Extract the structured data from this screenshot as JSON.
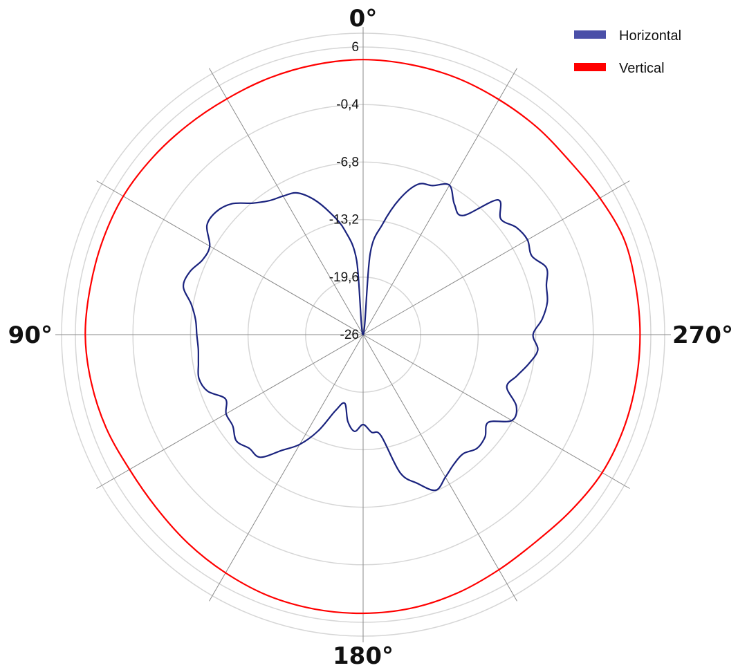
{
  "chart_data": {
    "type": "polar-line",
    "angle_labels": [
      "0°",
      "90°",
      "180°",
      "270°"
    ],
    "radial_ticks": [
      "-26",
      "-19,6",
      "-13,2",
      "-6,8",
      "-0,4",
      "6"
    ],
    "rlim": [
      -26,
      6
    ],
    "angle_direction": "counterclockwise",
    "zero_angle": "top",
    "spoke_step_deg": 30,
    "grid": true,
    "legend_position": "top-right",
    "series": [
      {
        "name": "Horizontal",
        "color": "#1a237e",
        "legend_color": "#4a4fa8",
        "theta": [
          0,
          5,
          10,
          15,
          20,
          25,
          30,
          35,
          40,
          45,
          50,
          55,
          60,
          65,
          70,
          75,
          80,
          85,
          90,
          95,
          100,
          105,
          110,
          115,
          120,
          125,
          130,
          135,
          140,
          145,
          150,
          155,
          160,
          165,
          170,
          175,
          180,
          185,
          190,
          195,
          200,
          205,
          210,
          215,
          220,
          225,
          230,
          235,
          240,
          245,
          250,
          255,
          260,
          265,
          270,
          275,
          280,
          285,
          290,
          295,
          300,
          305,
          310,
          315,
          320,
          325,
          330,
          335,
          340,
          345,
          350,
          355,
          360
        ],
        "r": [
          -26,
          -17.7,
          -14.2,
          -12.0,
          -10.0,
          -8.6,
          -8.2,
          -7.8,
          -6.9,
          -5.4,
          -4.7,
          -4.8,
          -6.3,
          -6.3,
          -5.5,
          -5.3,
          -6.6,
          -7.3,
          -7.5,
          -7.6,
          -7.4,
          -7.1,
          -7.6,
          -9.1,
          -8.4,
          -8.3,
          -7.6,
          -8.1,
          -8.2,
          -10.3,
          -11.9,
          -14.2,
          -17.0,
          -18.1,
          -16.2,
          -15.2,
          -16.0,
          -15.1,
          -14.6,
          -10.1,
          -8.4,
          -6.9,
          -7.7,
          -8.4,
          -8.7,
          -8.1,
          -8.3,
          -9.0,
          -6.9,
          -7.2,
          -9.0,
          -8.3,
          -7.3,
          -6.5,
          -7.1,
          -6.0,
          -5.2,
          -4.9,
          -4.3,
          -5.3,
          -4.9,
          -5.2,
          -6.0,
          -4.8,
          -8.7,
          -8.3,
          -6.8,
          -7.7,
          -8.2,
          -10.4,
          -13.5,
          -16.9,
          -26
        ]
      },
      {
        "name": "Vertical",
        "color": "#ff0000",
        "legend_color": "#ff0000",
        "theta": [
          0,
          10,
          20,
          30,
          40,
          50,
          60,
          70,
          80,
          90,
          100,
          110,
          120,
          130,
          140,
          150,
          160,
          170,
          180,
          190,
          200,
          210,
          220,
          230,
          240,
          250,
          260,
          270,
          280,
          290,
          300,
          310,
          320,
          330,
          340,
          350,
          360
        ],
        "r": [
          4.6,
          4.5,
          4.4,
          4.3,
          4.4,
          4.6,
          4.8,
          4.8,
          4.8,
          4.9,
          4.7,
          4.4,
          4.0,
          4.0,
          4.3,
          4.6,
          4.9,
          5.0,
          5.0,
          4.9,
          4.6,
          4.2,
          4.0,
          4.3,
          4.7,
          4.8,
          4.8,
          4.8,
          4.8,
          4.9,
          4.4,
          4.0,
          4.1,
          4.2,
          4.4,
          4.5,
          4.6
        ]
      }
    ]
  }
}
